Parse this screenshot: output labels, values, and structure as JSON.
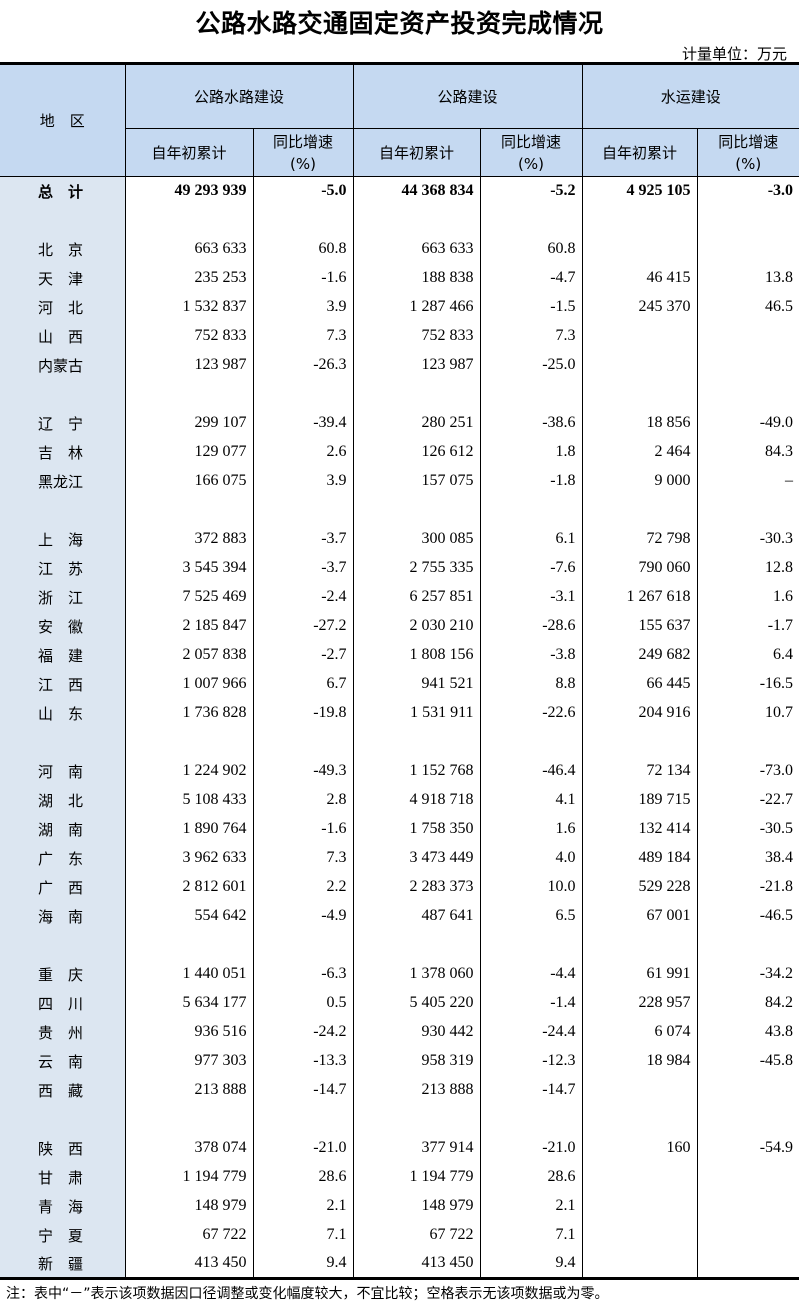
{
  "title": "公路水路交通固定资产投资完成情况",
  "unit": "计量单位：万元",
  "header": {
    "region": "地　区",
    "groups": [
      "公路水路建设",
      "公路建设",
      "水运建设"
    ],
    "cumulative": "自年初累计",
    "growth": "同比增速",
    "pct": "(%)"
  },
  "colors": {
    "header_bg": "#c5d9f1",
    "region_bg": "#dce6f1"
  },
  "total": [
    "总　计",
    "49 293 939",
    "-5.0",
    "44 368 834",
    "-5.2",
    "4 925 105",
    "-3.0"
  ],
  "groups": [
    [
      [
        "北　京",
        "663 633",
        "60.8",
        "663 633",
        "60.8",
        "",
        ""
      ],
      [
        "天　津",
        "235 253",
        "-1.6",
        "188 838",
        "-4.7",
        "46 415",
        "13.8"
      ],
      [
        "河　北",
        "1 532 837",
        "3.9",
        "1 287 466",
        "-1.5",
        "245 370",
        "46.5"
      ],
      [
        "山　西",
        "752 833",
        "7.3",
        "752 833",
        "7.3",
        "",
        ""
      ],
      [
        "内蒙古",
        "123 987",
        "-26.3",
        "123 987",
        "-25.0",
        "",
        ""
      ]
    ],
    [
      [
        "辽　宁",
        "299 107",
        "-39.4",
        "280 251",
        "-38.6",
        "18 856",
        "-49.0"
      ],
      [
        "吉　林",
        "129 077",
        "2.6",
        "126 612",
        "1.8",
        "2 464",
        "84.3"
      ],
      [
        "黑龙江",
        "166 075",
        "3.9",
        "157 075",
        "-1.8",
        "9 000",
        "–"
      ]
    ],
    [
      [
        "上　海",
        "372 883",
        "-3.7",
        "300 085",
        "6.1",
        "72 798",
        "-30.3"
      ],
      [
        "江　苏",
        "3 545 394",
        "-3.7",
        "2 755 335",
        "-7.6",
        "790 060",
        "12.8"
      ],
      [
        "浙　江",
        "7 525 469",
        "-2.4",
        "6 257 851",
        "-3.1",
        "1 267 618",
        "1.6"
      ],
      [
        "安　徽",
        "2 185 847",
        "-27.2",
        "2 030 210",
        "-28.6",
        "155 637",
        "-1.7"
      ],
      [
        "福　建",
        "2 057 838",
        "-2.7",
        "1 808 156",
        "-3.8",
        "249 682",
        "6.4"
      ],
      [
        "江　西",
        "1 007 966",
        "6.7",
        "941 521",
        "8.8",
        "66 445",
        "-16.5"
      ],
      [
        "山　东",
        "1 736 828",
        "-19.8",
        "1 531 911",
        "-22.6",
        "204 916",
        "10.7"
      ]
    ],
    [
      [
        "河　南",
        "1 224 902",
        "-49.3",
        "1 152 768",
        "-46.4",
        "72 134",
        "-73.0"
      ],
      [
        "湖　北",
        "5 108 433",
        "2.8",
        "4 918 718",
        "4.1",
        "189 715",
        "-22.7"
      ],
      [
        "湖　南",
        "1 890 764",
        "-1.6",
        "1 758 350",
        "1.6",
        "132 414",
        "-30.5"
      ],
      [
        "广　东",
        "3 962 633",
        "7.3",
        "3 473 449",
        "4.0",
        "489 184",
        "38.4"
      ],
      [
        "广　西",
        "2 812 601",
        "2.2",
        "2 283 373",
        "10.0",
        "529 228",
        "-21.8"
      ],
      [
        "海　南",
        "554 642",
        "-4.9",
        "487 641",
        "6.5",
        "67 001",
        "-46.5"
      ]
    ],
    [
      [
        "重　庆",
        "1 440 051",
        "-6.3",
        "1 378 060",
        "-4.4",
        "61 991",
        "-34.2"
      ],
      [
        "四　川",
        "5 634 177",
        "0.5",
        "5 405 220",
        "-1.4",
        "228 957",
        "84.2"
      ],
      [
        "贵　州",
        "936 516",
        "-24.2",
        "930 442",
        "-24.4",
        "6 074",
        "43.8"
      ],
      [
        "云　南",
        "977 303",
        "-13.3",
        "958 319",
        "-12.3",
        "18 984",
        "-45.8"
      ],
      [
        "西　藏",
        "213 888",
        "-14.7",
        "213 888",
        "-14.7",
        "",
        ""
      ]
    ],
    [
      [
        "陕　西",
        "378 074",
        "-21.0",
        "377 914",
        "-21.0",
        "160",
        "-54.9"
      ],
      [
        "甘　肃",
        "1 194 779",
        "28.6",
        "1 194 779",
        "28.6",
        "",
        ""
      ],
      [
        "青　海",
        "148 979",
        "2.1",
        "148 979",
        "2.1",
        "",
        ""
      ],
      [
        "宁　夏",
        "67 722",
        "7.1",
        "67 722",
        "7.1",
        "",
        ""
      ],
      [
        "新　疆",
        "413 450",
        "9.4",
        "413 450",
        "9.4",
        "",
        ""
      ]
    ]
  ],
  "note": "注：表中“－”表示该项数据因口径调整或变化幅度较大，不宜比较；空格表示无该项数据或为零。"
}
